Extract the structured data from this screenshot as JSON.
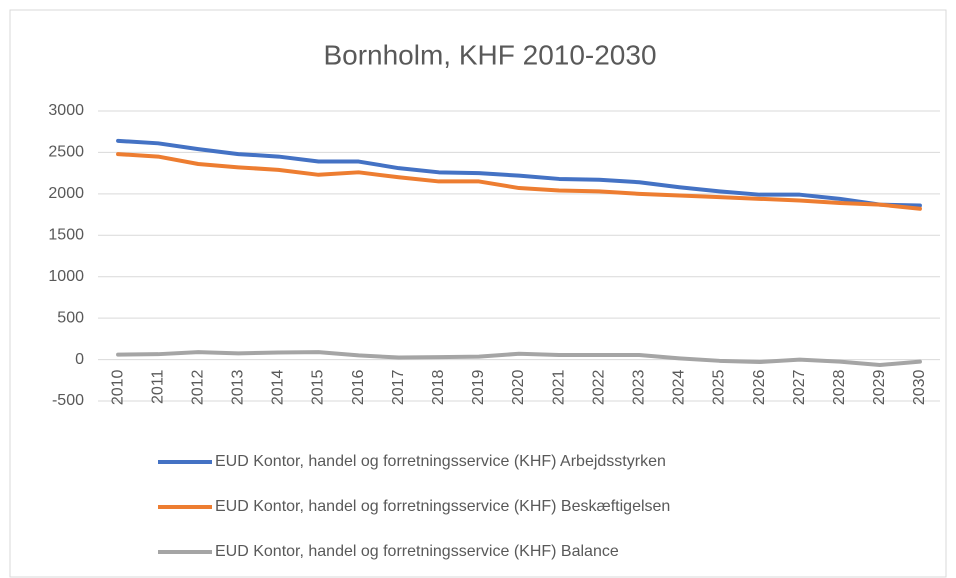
{
  "chart_data": {
    "type": "line",
    "title": "Bornholm, KHF 2010-2030",
    "categories": [
      "2010",
      "2011",
      "2012",
      "2013",
      "2014",
      "2015",
      "2016",
      "2017",
      "2018",
      "2019",
      "2020",
      "2021",
      "2022",
      "2023",
      "2024",
      "2025",
      "2026",
      "2027",
      "2028",
      "2029",
      "2030"
    ],
    "series": [
      {
        "name": "EUD Kontor, handel og forretningsservice (KHF) Arbejdsstyrken",
        "color": "#4472c4",
        "values": [
          2640,
          2610,
          2540,
          2480,
          2450,
          2390,
          2390,
          2310,
          2260,
          2250,
          2220,
          2180,
          2170,
          2140,
          2080,
          2030,
          1990,
          1990,
          1940,
          1870,
          1860
        ]
      },
      {
        "name": "EUD Kontor, handel og forretningsservice (KHF) Beskæftigelsen",
        "color": "#ed7d31",
        "values": [
          2480,
          2450,
          2360,
          2320,
          2290,
          2230,
          2260,
          2200,
          2150,
          2150,
          2070,
          2040,
          2030,
          2000,
          1980,
          1960,
          1940,
          1920,
          1890,
          1870,
          1820
        ]
      },
      {
        "name": "EUD Kontor, handel og forretningsservice (KHF) Balance",
        "color": "#a5a5a5",
        "values": [
          60,
          65,
          90,
          75,
          85,
          90,
          50,
          25,
          30,
          35,
          70,
          55,
          55,
          55,
          15,
          -15,
          -30,
          0,
          -25,
          -65,
          -25
        ]
      }
    ],
    "ylim": [
      -500,
      3000
    ],
    "yticks": [
      -500,
      0,
      500,
      1000,
      1500,
      2000,
      2500,
      3000
    ],
    "grid": true
  }
}
